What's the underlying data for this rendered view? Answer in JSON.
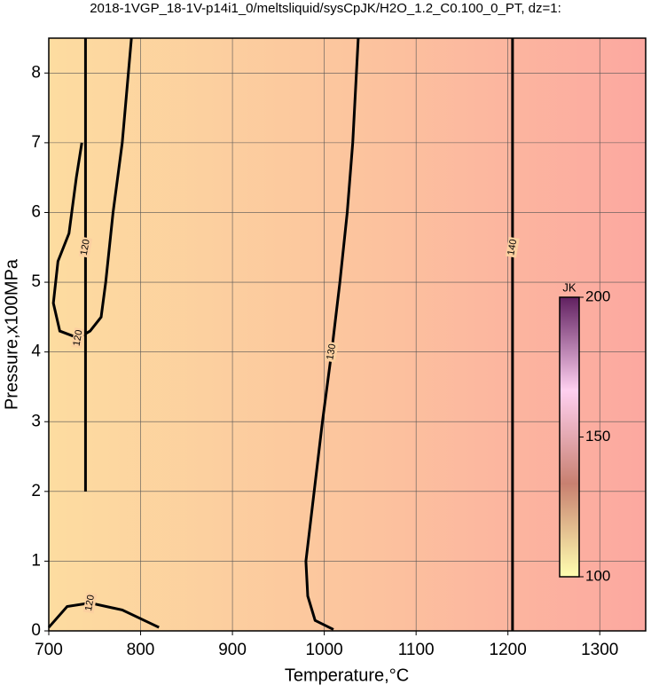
{
  "chart_data": {
    "type": "contour",
    "title": "2018-1VGP_18-1V-p14i1_0/meltsliquid/sysCpJK/H2O_1.2_C0.100_0_PT, dz=1:",
    "x_label": "Temperature,°C",
    "y_label": "Pressure,x100MPa",
    "xlim": [
      700,
      1350
    ],
    "ylim": [
      0,
      8.5
    ],
    "xticks": [
      700,
      800,
      900,
      1000,
      1100,
      1200,
      1300
    ],
    "yticks": [
      0,
      1,
      2,
      3,
      4,
      5,
      6,
      7,
      8
    ],
    "grid": true,
    "line_color": "#000000",
    "contours": [
      {
        "level": 130,
        "points": [
          [
            1010,
            0.02
          ],
          [
            990,
            0.15
          ],
          [
            982,
            0.5
          ],
          [
            980,
            1
          ],
          [
            989,
            2
          ],
          [
            998,
            3
          ],
          [
            1008,
            4
          ],
          [
            1017,
            5
          ],
          [
            1025,
            6
          ],
          [
            1031,
            7
          ],
          [
            1035,
            8
          ],
          [
            1037,
            8.5
          ]
        ]
      },
      {
        "level": 140,
        "points": [
          [
            1205,
            0
          ],
          [
            1205,
            2.7
          ],
          [
            1205,
            5.5
          ],
          [
            1205,
            8.5
          ]
        ]
      },
      {
        "level": 120,
        "points": [
          [
            790,
            8.5
          ],
          [
            780,
            7
          ],
          [
            770,
            6
          ],
          [
            762,
            5
          ],
          [
            757,
            4.5
          ],
          [
            745,
            4.3
          ],
          [
            732,
            4.2
          ],
          [
            712,
            4.3
          ],
          [
            705,
            4.7
          ],
          [
            710,
            5.3
          ],
          [
            722,
            5.7
          ],
          [
            730,
            6.5
          ],
          [
            736,
            7
          ]
        ]
      },
      {
        "level": 120,
        "points": [
          [
            700,
            0.05
          ],
          [
            720,
            0.35
          ],
          [
            745,
            0.4
          ],
          [
            780,
            0.3
          ],
          [
            820,
            0.05
          ]
        ]
      },
      {
        "level": 120,
        "points": [
          [
            740,
            2
          ],
          [
            740,
            4.3
          ],
          [
            740,
            5.5
          ],
          [
            740,
            7.5
          ],
          [
            740,
            8.5
          ]
        ]
      }
    ],
    "colorbar": {
      "title": "JK",
      "lim": [
        100,
        200
      ],
      "ticks": [
        100,
        150,
        200
      ],
      "colors": [
        "#ffffb0",
        "#c88070",
        "#ffd0f0",
        "#602060"
      ]
    }
  }
}
